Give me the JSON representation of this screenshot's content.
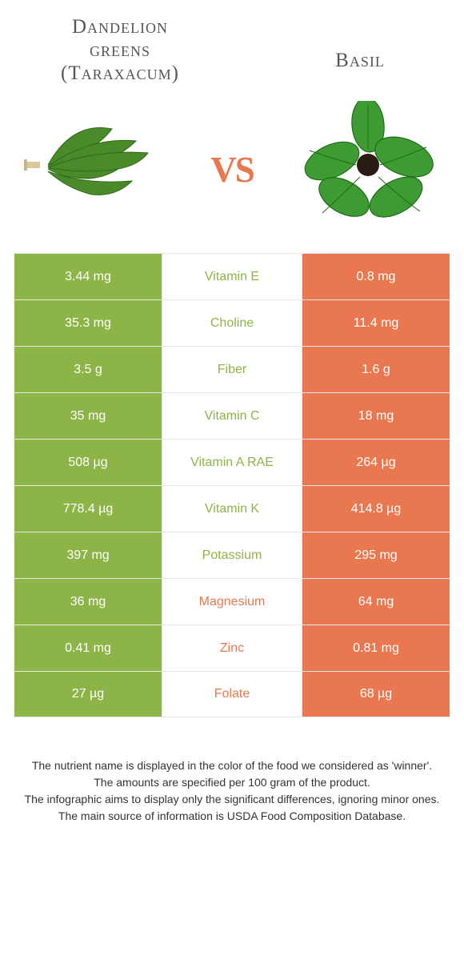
{
  "colors": {
    "left": "#8db446",
    "right": "#e97850",
    "left_text": "#8db446",
    "right_text": "#e97850",
    "row_border": "#e5e5e5"
  },
  "header": {
    "left_line1": "Dandelion",
    "left_line2": "greens",
    "left_line3": "(Taraxacum)",
    "right": "Basil",
    "vs": "vs"
  },
  "rows": [
    {
      "nutrient": "Vitamin E",
      "left": "3.44 mg",
      "right": "0.8 mg",
      "winner": "left"
    },
    {
      "nutrient": "Choline",
      "left": "35.3 mg",
      "right": "11.4 mg",
      "winner": "left"
    },
    {
      "nutrient": "Fiber",
      "left": "3.5 g",
      "right": "1.6 g",
      "winner": "left"
    },
    {
      "nutrient": "Vitamin C",
      "left": "35 mg",
      "right": "18 mg",
      "winner": "left"
    },
    {
      "nutrient": "Vitamin A RAE",
      "left": "508 µg",
      "right": "264 µg",
      "winner": "left"
    },
    {
      "nutrient": "Vitamin K",
      "left": "778.4 µg",
      "right": "414.8 µg",
      "winner": "left"
    },
    {
      "nutrient": "Potassium",
      "left": "397 mg",
      "right": "295 mg",
      "winner": "left"
    },
    {
      "nutrient": "Magnesium",
      "left": "36 mg",
      "right": "64 mg",
      "winner": "right"
    },
    {
      "nutrient": "Zinc",
      "left": "0.41 mg",
      "right": "0.81 mg",
      "winner": "right"
    },
    {
      "nutrient": "Folate",
      "left": "27 µg",
      "right": "68 µg",
      "winner": "right"
    }
  ],
  "footer": {
    "l1": "The nutrient name is displayed in the color of the food we considered as 'winner'.",
    "l2": "The amounts are specified per 100 gram of the product.",
    "l3": "The infographic aims to display only the significant differences, ignoring minor ones.",
    "l4": "The main source of information is USDA Food Composition Database."
  }
}
